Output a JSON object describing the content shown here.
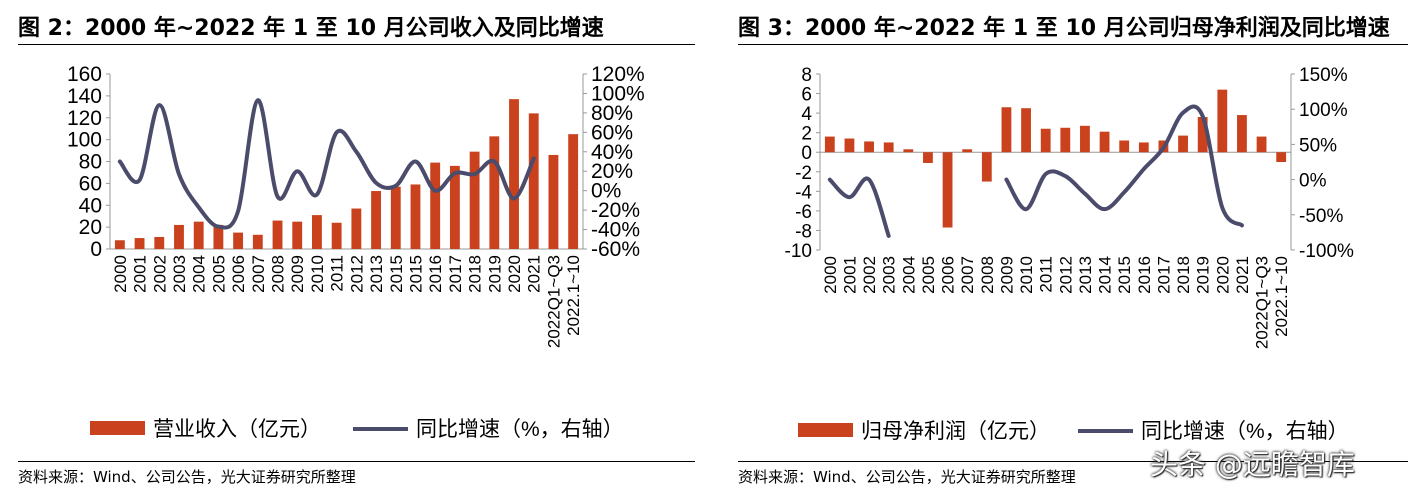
{
  "left_panel": {
    "title": "图 2：2000 年~2022 年 1 至 10 月公司收入及同比增速",
    "source": "资料来源：Wind、公司公告，光大证券研究所整理"
  },
  "right_panel": {
    "title": "图 3：2000 年~2022 年 1 至 10 月公司归母净利润及同比增速",
    "source": "资料来源：Wind、公司公告，光大证券研究所整理"
  },
  "watermark": "头条 @远瞻智库",
  "colors": {
    "bar": "#C9421D",
    "line": "#4B4B6B"
  },
  "chart_data": [
    {
      "type": "bar",
      "categories": [
        "2000",
        "2001",
        "2002",
        "2003",
        "2004",
        "2005",
        "2006",
        "2007",
        "2008",
        "2009",
        "2010",
        "2011",
        "2012",
        "2013",
        "2015",
        "2015",
        "2016",
        "2017",
        "2018",
        "2019",
        "2020",
        "2021",
        "2022Q1~Q3",
        "2022.1~10"
      ],
      "series": [
        {
          "name": "营业收入（亿元）",
          "axis": "left",
          "kind": "bar",
          "values": [
            8,
            10,
            11,
            22,
            25,
            22,
            15,
            13,
            26,
            25,
            31,
            24,
            37,
            53,
            57,
            59,
            79,
            76,
            89,
            103,
            137,
            124,
            86,
            105
          ]
        },
        {
          "name": "同比增速（%，右轴）",
          "axis": "right",
          "kind": "line",
          "values": [
            30,
            11,
            88,
            17,
            -17,
            -37,
            -21,
            93,
            -6,
            20,
            -4,
            60,
            40,
            8,
            5,
            30,
            0,
            18,
            17,
            30,
            -8,
            33,
            null,
            null
          ]
        }
      ],
      "left_axis": {
        "ticks": [
          0,
          20,
          40,
          60,
          80,
          100,
          120,
          140,
          160
        ],
        "ylim": [
          0,
          160
        ]
      },
      "right_axis": {
        "ticks": [
          "120%",
          "100%",
          "80%",
          "60%",
          "40%",
          "20%",
          "0%",
          "-20%",
          "-40%",
          "-60%"
        ],
        "ylim": [
          -60,
          120
        ]
      },
      "legend_position": "bottom"
    },
    {
      "type": "bar",
      "categories": [
        "2000",
        "2001",
        "2002",
        "2003",
        "2004",
        "2005",
        "2006",
        "2007",
        "2008",
        "2009",
        "2010",
        "2011",
        "2012",
        "2013",
        "2014",
        "2015",
        "2016",
        "2017",
        "2018",
        "2019",
        "2020",
        "2021",
        "2022Q1~Q3",
        "2022.1~10"
      ],
      "series": [
        {
          "name": "归母净利润（亿元）",
          "axis": "left",
          "kind": "bar",
          "values": [
            1.6,
            1.4,
            1.1,
            1.0,
            0.3,
            -1.1,
            -7.7,
            0.3,
            -3.0,
            4.6,
            4.5,
            2.4,
            2.5,
            2.7,
            2.1,
            1.2,
            1.0,
            1.2,
            1.7,
            3.6,
            6.4,
            3.8,
            1.6,
            -1.0
          ]
        },
        {
          "name": "同比增速（%，右轴）",
          "axis": "right",
          "kind": "line",
          "values": [
            0,
            -25,
            0,
            -80,
            null,
            null,
            null,
            null,
            null,
            0,
            -42,
            8,
            5,
            -20,
            -42,
            -18,
            15,
            45,
            95,
            90,
            -40,
            -65,
            null,
            null
          ]
        }
      ],
      "left_axis": {
        "ticks": [
          8,
          6,
          4,
          2,
          0,
          -2,
          -4,
          -6,
          -8,
          -10
        ],
        "ylim": [
          -10,
          8
        ]
      },
      "right_axis": {
        "ticks": [
          "150%",
          "100%",
          "50%",
          "0%",
          "-50%",
          "-100%"
        ],
        "ylim": [
          -100,
          150
        ]
      },
      "legend_position": "bottom"
    }
  ]
}
